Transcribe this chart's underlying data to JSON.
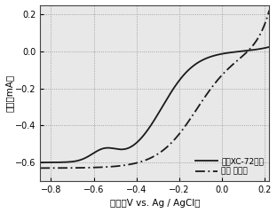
{
  "xlim": [
    -0.85,
    0.22
  ],
  "ylim": [
    -0.7,
    0.25
  ],
  "xticks": [
    -0.8,
    -0.6,
    -0.4,
    -0.2,
    0.0,
    0.2
  ],
  "yticks": [
    -0.6,
    -0.4,
    -0.2,
    0.0,
    0.2
  ],
  "xlabel": "电压（V vs. Ag / AgCl）",
  "ylabel": "电流（mA）",
  "legend1": "商业XC-72碳粉",
  "legend2": "牛粪 催化剂",
  "line_color": "#1a1a1a",
  "background_color": "#e8e8e8"
}
